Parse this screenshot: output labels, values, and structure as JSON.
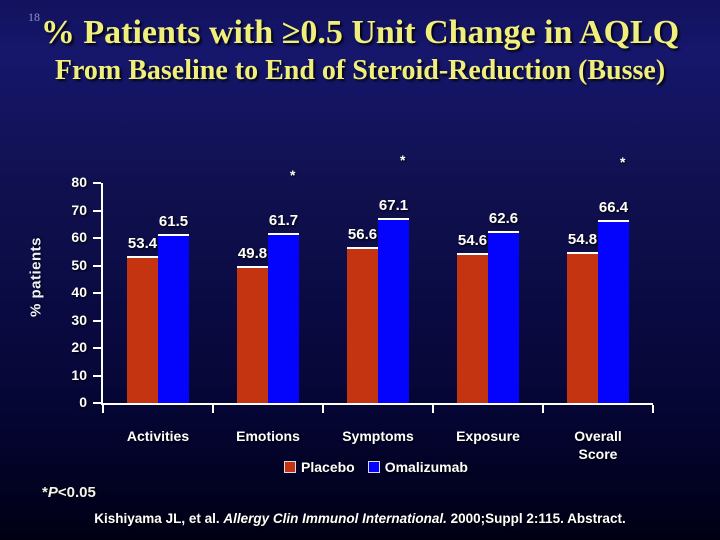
{
  "slide_number": "18",
  "title": {
    "line1": "% Patients with ≥0.5 Unit Change in AQLQ",
    "line2": "From Baseline to End of Steroid-Reduction (Busse)"
  },
  "colors": {
    "background_navy": "#0d0d4c",
    "title_yellow": "#f1ef7b",
    "placebo_red": "#c43410",
    "omalizumab_blue": "#0404fc",
    "axis_white": "#ffffff"
  },
  "chart_data": {
    "type": "bar",
    "title": "",
    "categories": [
      "Activities",
      "Emotions",
      "Symptoms",
      "Exposure",
      "Overall\nScore"
    ],
    "series": [
      {
        "name": "Placebo",
        "color": "#c43410",
        "values": [
          53.4,
          49.8,
          56.6,
          54.6,
          54.8
        ]
      },
      {
        "name": "Omalizumab",
        "color": "#0404fc",
        "values": [
          61.5,
          61.7,
          67.1,
          62.6,
          66.4
        ]
      }
    ],
    "significant": [
      false,
      true,
      true,
      false,
      true
    ],
    "significance_marker": "*",
    "xlabel": "",
    "ylabel": "% patients",
    "ylim": [
      0,
      80
    ],
    "yticks": [
      0,
      10,
      20,
      30,
      40,
      50,
      60,
      70,
      80
    ],
    "grid": false,
    "legend_position": "bottom"
  },
  "footnote": {
    "star": "*",
    "p": "P",
    "rest": "<0.05"
  },
  "citation": {
    "pre": "Kishiyama JL, et al. ",
    "italic": "Allergy Clin Immunol International.",
    "post": " 2000;Suppl 2:115. Abstract."
  }
}
